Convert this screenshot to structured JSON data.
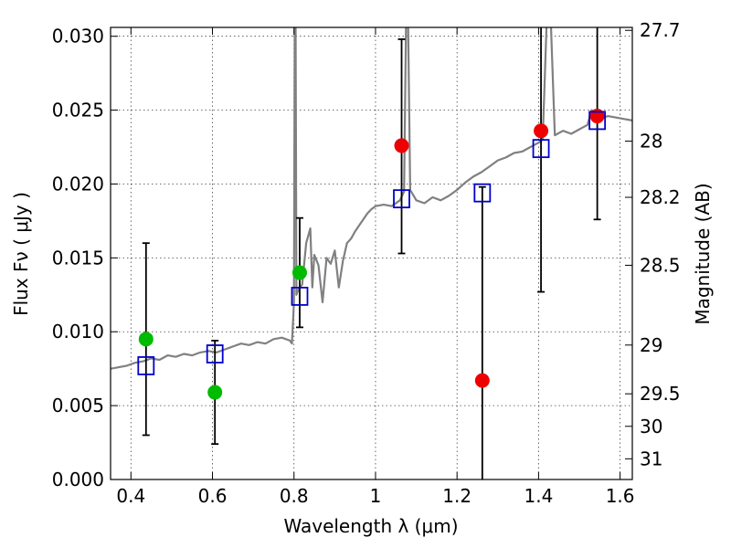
{
  "chart_data": {
    "type": "scatter",
    "title": "",
    "xlabel": "Wavelength  λ (μm)",
    "ylabel": "Flux  Fν  ( μJy )",
    "y2label": "Magnitude (AB)",
    "xlim": [
      0.35,
      1.63
    ],
    "ylim": [
      0.0,
      0.0306
    ],
    "grid": true,
    "x_ticks": [
      0.4,
      0.6,
      0.8,
      1.0,
      1.2,
      1.4,
      1.6
    ],
    "x_tick_labels": [
      "0.4",
      "0.6",
      "0.8",
      "1",
      "1.2",
      "1.4",
      "1.6"
    ],
    "y_ticks": [
      0.0,
      0.005,
      0.01,
      0.015,
      0.02,
      0.025,
      0.03
    ],
    "y_tick_labels": [
      "0.000",
      "0.005",
      "0.010",
      "0.015",
      "0.020",
      "0.025",
      "0.030"
    ],
    "mag_ticks": [
      {
        "label": "27.7",
        "flux": 0.0304
      },
      {
        "label": "28",
        "flux": 0.0229
      },
      {
        "label": "28.2",
        "flux": 0.0191
      },
      {
        "label": "28.5",
        "flux": 0.0145
      },
      {
        "label": "29",
        "flux": 0.0091
      },
      {
        "label": "29.5",
        "flux": 0.0058
      },
      {
        "label": "30",
        "flux": 0.0036
      },
      {
        "label": "31",
        "flux": 0.0014
      }
    ],
    "colors": {
      "spectrum": "#808080",
      "model_box": "#0000cc",
      "obs_optical": "#00bb00",
      "obs_nir": "#ee0000",
      "errorbar": "#000000"
    },
    "spectrum": [
      [
        0.35,
        0.0075
      ],
      [
        0.37,
        0.0076
      ],
      [
        0.39,
        0.0077
      ],
      [
        0.41,
        0.0079
      ],
      [
        0.43,
        0.008
      ],
      [
        0.45,
        0.0082
      ],
      [
        0.47,
        0.0081
      ],
      [
        0.49,
        0.0084
      ],
      [
        0.51,
        0.0083
      ],
      [
        0.53,
        0.0085
      ],
      [
        0.55,
        0.0084
      ],
      [
        0.57,
        0.0086
      ],
      [
        0.59,
        0.0087
      ],
      [
        0.61,
        0.0086
      ],
      [
        0.63,
        0.0088
      ],
      [
        0.65,
        0.009
      ],
      [
        0.67,
        0.0092
      ],
      [
        0.69,
        0.0091
      ],
      [
        0.71,
        0.0093
      ],
      [
        0.73,
        0.0092
      ],
      [
        0.75,
        0.0095
      ],
      [
        0.77,
        0.0096
      ],
      [
        0.79,
        0.0094
      ],
      [
        0.795,
        0.0092
      ],
      [
        0.8,
        0.012
      ],
      [
        0.802,
        0.031
      ],
      [
        0.804,
        0.031
      ],
      [
        0.806,
        0.0125
      ],
      [
        0.81,
        0.0128
      ],
      [
        0.82,
        0.0132
      ],
      [
        0.83,
        0.016
      ],
      [
        0.84,
        0.017
      ],
      [
        0.845,
        0.013
      ],
      [
        0.85,
        0.0152
      ],
      [
        0.86,
        0.0145
      ],
      [
        0.87,
        0.012
      ],
      [
        0.88,
        0.015
      ],
      [
        0.89,
        0.0146
      ],
      [
        0.9,
        0.0155
      ],
      [
        0.91,
        0.013
      ],
      [
        0.92,
        0.0148
      ],
      [
        0.93,
        0.016
      ],
      [
        0.94,
        0.0163
      ],
      [
        0.95,
        0.0168
      ],
      [
        0.96,
        0.0172
      ],
      [
        0.97,
        0.0176
      ],
      [
        0.98,
        0.018
      ],
      [
        0.99,
        0.0183
      ],
      [
        1.0,
        0.0185
      ],
      [
        1.02,
        0.0186
      ],
      [
        1.04,
        0.0185
      ],
      [
        1.06,
        0.0189
      ],
      [
        1.07,
        0.0195
      ],
      [
        1.075,
        0.031
      ],
      [
        1.08,
        0.031
      ],
      [
        1.085,
        0.0196
      ],
      [
        1.1,
        0.0189
      ],
      [
        1.12,
        0.0187
      ],
      [
        1.14,
        0.0191
      ],
      [
        1.16,
        0.0189
      ],
      [
        1.18,
        0.0192
      ],
      [
        1.2,
        0.0196
      ],
      [
        1.22,
        0.0201
      ],
      [
        1.24,
        0.0205
      ],
      [
        1.26,
        0.0208
      ],
      [
        1.28,
        0.0212
      ],
      [
        1.3,
        0.0216
      ],
      [
        1.32,
        0.0218
      ],
      [
        1.34,
        0.0221
      ],
      [
        1.36,
        0.0222
      ],
      [
        1.38,
        0.0225
      ],
      [
        1.4,
        0.0228
      ],
      [
        1.41,
        0.023
      ],
      [
        1.42,
        0.031
      ],
      [
        1.43,
        0.031
      ],
      [
        1.44,
        0.0233
      ],
      [
        1.46,
        0.0236
      ],
      [
        1.48,
        0.0234
      ],
      [
        1.5,
        0.0237
      ],
      [
        1.52,
        0.024
      ],
      [
        1.53,
        0.025
      ],
      [
        1.54,
        0.0248
      ],
      [
        1.55,
        0.0244
      ],
      [
        1.57,
        0.0246
      ],
      [
        1.59,
        0.0245
      ],
      [
        1.61,
        0.0244
      ],
      [
        1.63,
        0.0243
      ]
    ],
    "model_boxes": [
      {
        "x": 0.437,
        "y": 0.0077
      },
      {
        "x": 0.606,
        "y": 0.0085
      },
      {
        "x": 0.814,
        "y": 0.0124
      },
      {
        "x": 1.064,
        "y": 0.019
      },
      {
        "x": 1.262,
        "y": 0.0194
      },
      {
        "x": 1.406,
        "y": 0.0224
      },
      {
        "x": 1.544,
        "y": 0.0243
      }
    ],
    "observations": [
      {
        "x": 0.437,
        "y": 0.0095,
        "lo": 0.003,
        "hi": 0.016,
        "color": "obs_optical"
      },
      {
        "x": 0.606,
        "y": 0.0059,
        "lo": 0.0024,
        "hi": 0.0094,
        "color": "obs_optical"
      },
      {
        "x": 0.814,
        "y": 0.014,
        "lo": 0.0103,
        "hi": 0.0177,
        "color": "obs_optical"
      },
      {
        "x": 1.064,
        "y": 0.0226,
        "lo": 0.0153,
        "hi": 0.0298,
        "color": "obs_nir"
      },
      {
        "x": 1.262,
        "y": 0.0067,
        "lo": 0.0,
        "hi": 0.0198,
        "color": "obs_nir"
      },
      {
        "x": 1.406,
        "y": 0.0236,
        "lo": 0.0127,
        "hi": 0.031,
        "color": "obs_nir"
      },
      {
        "x": 1.544,
        "y": 0.0246,
        "lo": 0.0176,
        "hi": 0.031,
        "color": "obs_nir"
      }
    ]
  }
}
